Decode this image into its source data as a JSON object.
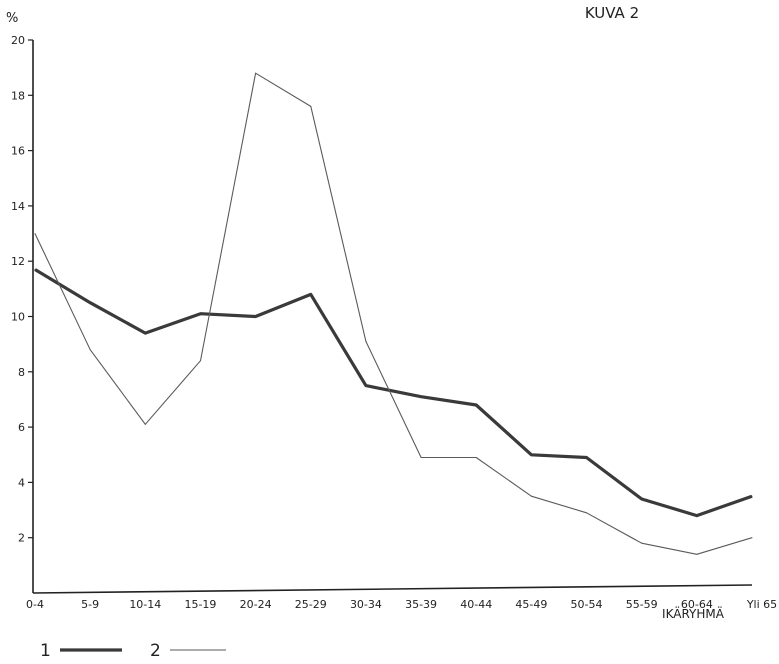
{
  "chart_data": {
    "type": "line",
    "title": "KUVA 2",
    "ylabel": "%",
    "xlabel": "IKÄRYHMÄ",
    "ylim": [
      0,
      20
    ],
    "yticks": [
      2,
      4,
      6,
      8,
      10,
      12,
      14,
      16,
      18,
      20
    ],
    "grid": false,
    "legend_position": "bottom-left",
    "categories": [
      "0-4",
      "5-9",
      "10-14",
      "15-19",
      "20-24",
      "25-29",
      "30-34",
      "35-39",
      "40-44",
      "45-49",
      "50-54",
      "55-59",
      "60-64",
      "Yli 65"
    ],
    "series": [
      {
        "name": "1",
        "line": "thick",
        "color": "#3a3a3a",
        "values": [
          11.7,
          10.5,
          9.4,
          10.1,
          10.0,
          10.8,
          7.5,
          7.1,
          6.8,
          5.0,
          4.9,
          3.4,
          2.8,
          3.5
        ]
      },
      {
        "name": "2",
        "line": "thin",
        "color": "#5a5a5a",
        "values": [
          13.0,
          8.8,
          6.1,
          8.4,
          18.8,
          17.6,
          9.1,
          4.9,
          4.9,
          3.5,
          2.9,
          1.8,
          1.4,
          2.0
        ]
      }
    ]
  }
}
